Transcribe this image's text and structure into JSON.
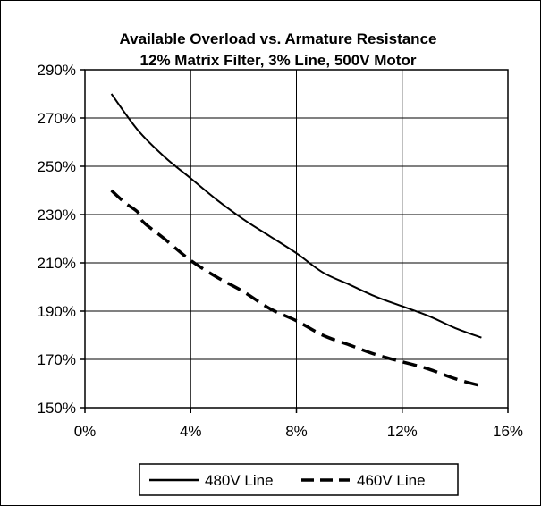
{
  "chart_data": {
    "type": "line",
    "title": "Available Overload vs. Armature Resistance",
    "subtitle": "12% Matrix Filter, 3% Line, 500V Motor",
    "xlabel": "",
    "ylabel": "",
    "xlim": [
      0,
      16
    ],
    "ylim": [
      150,
      290
    ],
    "x_ticks": [
      0,
      4,
      8,
      12,
      16
    ],
    "x_tick_labels": [
      "0%",
      "4%",
      "8%",
      "12%",
      "16%"
    ],
    "y_ticks": [
      150,
      170,
      190,
      210,
      230,
      250,
      270,
      290
    ],
    "y_tick_labels": [
      "150%",
      "170%",
      "190%",
      "210%",
      "230%",
      "250%",
      "270%",
      "290%"
    ],
    "grid": true,
    "legend_position": "bottom",
    "series": [
      {
        "name": "480V Line",
        "style": "solid",
        "color": "#000000",
        "x": [
          1,
          2,
          3,
          4,
          5,
          6,
          7,
          8,
          9,
          10,
          11,
          12,
          13,
          14,
          15
        ],
        "y": [
          280,
          265,
          254,
          245,
          236,
          228,
          221,
          214,
          206,
          201,
          196,
          192,
          188,
          183,
          179
        ]
      },
      {
        "name": "460V Line",
        "style": "dashed",
        "color": "#000000",
        "x": [
          1,
          1.5,
          2,
          2.2,
          3,
          4,
          5,
          6,
          7,
          8,
          9,
          10,
          11,
          12,
          13,
          14,
          15
        ],
        "y": [
          240,
          235,
          231,
          227,
          220,
          211,
          204,
          198,
          191,
          186,
          180,
          176,
          172,
          169,
          166,
          162,
          159
        ]
      }
    ]
  }
}
